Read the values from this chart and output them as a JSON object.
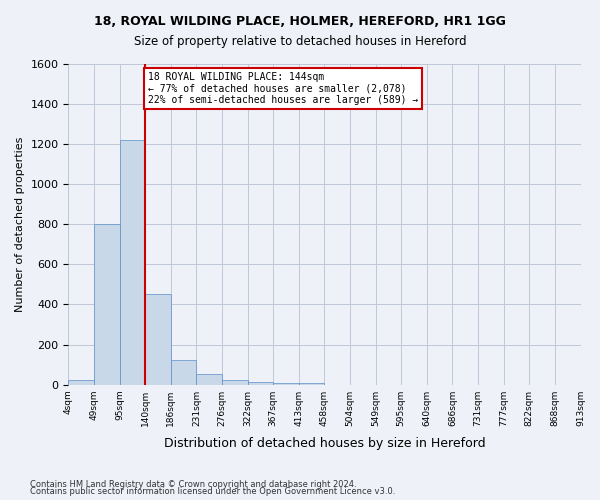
{
  "title1": "18, ROYAL WILDING PLACE, HOLMER, HEREFORD, HR1 1GG",
  "title2": "Size of property relative to detached houses in Hereford",
  "xlabel": "Distribution of detached houses by size in Hereford",
  "ylabel": "Number of detached properties",
  "footer1": "Contains HM Land Registry data © Crown copyright and database right 2024.",
  "footer2": "Contains public sector information licensed under the Open Government Licence v3.0.",
  "bin_labels": [
    "4sqm",
    "49sqm",
    "95sqm",
    "140sqm",
    "186sqm",
    "231sqm",
    "276sqm",
    "322sqm",
    "367sqm",
    "413sqm",
    "458sqm",
    "504sqm",
    "549sqm",
    "595sqm",
    "640sqm",
    "686sqm",
    "731sqm",
    "777sqm",
    "822sqm",
    "868sqm",
    "913sqm"
  ],
  "bar_values": [
    25,
    800,
    1220,
    450,
    125,
    55,
    25,
    15,
    10,
    10,
    0,
    0,
    0,
    0,
    0,
    0,
    0,
    0,
    0,
    0
  ],
  "bar_color": "#c8d8e8",
  "bar_edge_color": "#5b8fc9",
  "vline_x_index": 3,
  "vline_color": "#cc0000",
  "ylim": [
    0,
    1600
  ],
  "yticks": [
    0,
    200,
    400,
    600,
    800,
    1000,
    1200,
    1400,
    1600
  ],
  "annotation_text": "18 ROYAL WILDING PLACE: 144sqm\n← 77% of detached houses are smaller (2,078)\n22% of semi-detached houses are larger (589) →",
  "annotation_box_color": "#ffffff",
  "annotation_box_edge": "#cc0000",
  "grid_color": "#c0c8d8",
  "background_color": "#eef2f8"
}
